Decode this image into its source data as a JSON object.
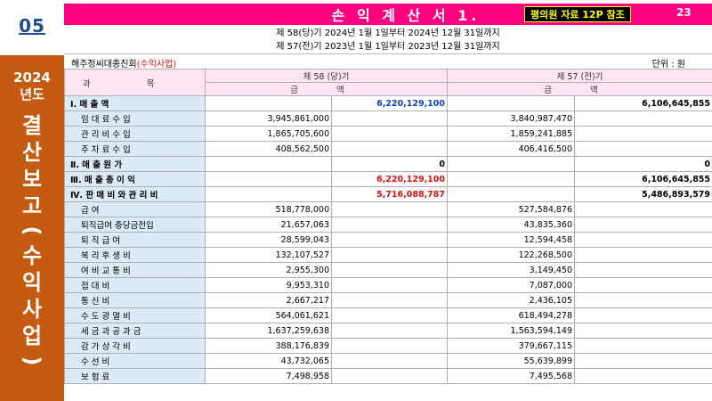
{
  "section_number": "05",
  "sidebar": {
    "year": "2024",
    "year_suffix": "년도",
    "vertical_title": [
      "결",
      "산",
      "보",
      "고",
      "(",
      "수",
      "익",
      "사",
      "업",
      ")"
    ]
  },
  "header": {
    "title": "손 익 계 산 서 1.",
    "reference": "평의원 자료 12P 참조",
    "page_number": "23"
  },
  "periods": [
    "제 58(당)기  2024년  1월  1일부터   2024년 12월  31일까지",
    "제 57(전)기  2023년  1월  1일부터   2023년 12월  31일까지"
  ],
  "organization": {
    "name": "해주정씨대종친회",
    "tag": "(수익사업)"
  },
  "unit": "단위 : 원",
  "table": {
    "col_subject": "과       목",
    "col_current": "제  58 (당)기",
    "col_previous": "제  57 (전)기",
    "col_amount": "금       액",
    "rows": [
      {
        "label": "Ⅰ. 매     출     액",
        "type": "major",
        "cur_total": "6,220,129,100",
        "cur_total_color": "blue",
        "prev_total": "6,106,645,855"
      },
      {
        "label": "임 대 료 수 입",
        "type": "minor",
        "cur_detail": "3,945,861,000",
        "prev_detail": "3,840,987,470"
      },
      {
        "label": "관 리 비 수 입",
        "type": "minor",
        "cur_detail": "1,865,705,600",
        "prev_detail": "1,859,241,885"
      },
      {
        "label": "주 차 료 수 입",
        "type": "minor",
        "cur_detail": "408,562,500",
        "prev_detail": "406,416,500"
      },
      {
        "label": "Ⅱ. 매  출  원  가",
        "type": "major",
        "cur_total": "0",
        "cur_total_color": "black",
        "prev_total": "0"
      },
      {
        "label": "Ⅲ. 매 출 총 이 익",
        "type": "major",
        "cur_total": "6,220,129,100",
        "cur_total_color": "red",
        "prev_total": "6,106,645,855"
      },
      {
        "label": "Ⅳ. 판 매 비 와 관 리 비",
        "type": "major",
        "cur_total": "5,716,088,787",
        "cur_total_color": "red",
        "prev_total": "5,486,893,579"
      },
      {
        "label": "급          여",
        "type": "minor",
        "cur_detail": "518,778,000",
        "prev_detail": "527,584,876"
      },
      {
        "label": "퇴직급여 충당금전입",
        "type": "minor",
        "cur_detail": "21,657,063",
        "prev_detail": "43,835,360"
      },
      {
        "label": "퇴    직    급    여",
        "type": "minor",
        "cur_detail": "28,599,043",
        "prev_detail": "12,594,458"
      },
      {
        "label": "복  리  후  생  비",
        "type": "minor",
        "cur_detail": "132,107,527",
        "prev_detail": "122,268,500"
      },
      {
        "label": "여  비  교  통  비",
        "type": "minor",
        "cur_detail": "2,955,300",
        "prev_detail": "3,149,450"
      },
      {
        "label": "접        대        비",
        "type": "minor",
        "cur_detail": "9,953,310",
        "prev_detail": "7,087,000"
      },
      {
        "label": "통        신        비",
        "type": "minor",
        "cur_detail": "2,667,217",
        "prev_detail": "2,436,105"
      },
      {
        "label": "수  도  광  열  비",
        "type": "minor",
        "cur_detail": "564,061,621",
        "prev_detail": "618,494,278"
      },
      {
        "label": "세 금 과 공 과 금",
        "type": "minor",
        "cur_detail": "1,637,259,638",
        "prev_detail": "1,563,594,149"
      },
      {
        "label": "감  가  상  각  비",
        "type": "minor",
        "cur_detail": "388,176,839",
        "prev_detail": "379,667,115"
      },
      {
        "label": "수        선        비",
        "type": "minor",
        "cur_detail": "43,732,065",
        "prev_detail": "55,639,899"
      },
      {
        "label": "보        험        료",
        "type": "minor",
        "cur_detail": "7,498,958",
        "prev_detail": "7,495,568"
      }
    ]
  },
  "colors": {
    "title_bar": "#ff0080",
    "sidebar": "#c55a11",
    "section_number": "#1d4f8e",
    "header_bg": "#ffe4f4",
    "highlight_red": "#e01010",
    "highlight_blue": "#1040c0"
  }
}
